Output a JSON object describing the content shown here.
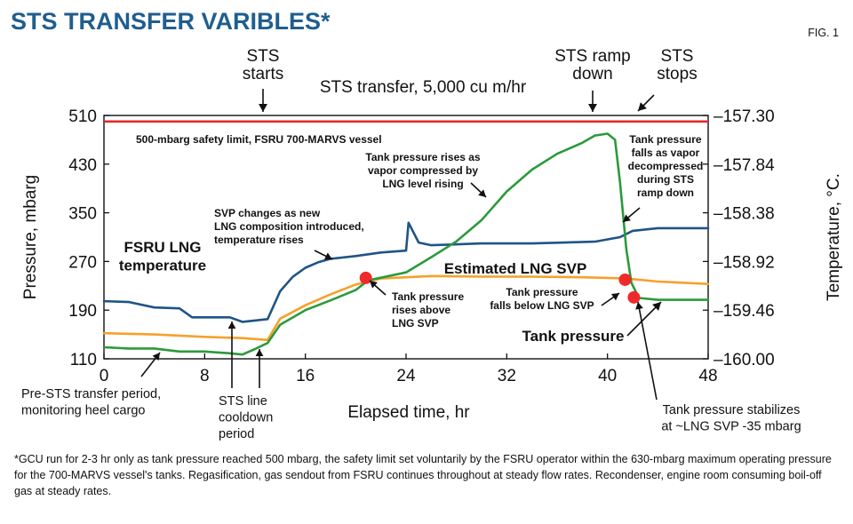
{
  "chart_data": {
    "type": "line",
    "title": "STS TRANSFER VARIBLES*",
    "figure_label": "FIG. 1",
    "xlabel": "Elapsed time, hr",
    "ylabel_left": "Pressure, mbarg",
    "ylabel_right": "Temperature, °C.",
    "xlim": [
      0,
      48
    ],
    "ylim_left": [
      110,
      510
    ],
    "ylim_right": [
      -160.0,
      -157.3
    ],
    "x_ticks": [
      "0",
      "8",
      "16",
      "24",
      "32",
      "40",
      "48"
    ],
    "y_ticks_left": [
      "110",
      "190",
      "270",
      "350",
      "430",
      "510"
    ],
    "y_ticks_right": [
      "–157.30",
      "–157.84",
      "–158.38",
      "–158.92",
      "–159.46",
      "–160.00"
    ],
    "grid": false,
    "colors": {
      "title": "#1f5e8f",
      "safety_limit": "#e8262c",
      "temperature": "#1f5486",
      "svp": "#f5a12a",
      "tank_pressure": "#2b9a3b",
      "marker": "#f02a2a"
    },
    "reference_line": {
      "y": 500,
      "label": "500-mbarg safety limit, FSRU 700-MARVS vessel"
    },
    "series": [
      {
        "name": "FSRU LNG temperature",
        "axis": "right",
        "points": [
          [
            0,
            -159.36
          ],
          [
            2,
            -159.37
          ],
          [
            4,
            -159.43
          ],
          [
            6,
            -159.44
          ],
          [
            7,
            -159.54
          ],
          [
            10,
            -159.54
          ],
          [
            11,
            -159.59
          ],
          [
            13,
            -159.56
          ],
          [
            14,
            -159.25
          ],
          [
            15,
            -159.09
          ],
          [
            16,
            -158.99
          ],
          [
            17,
            -158.93
          ],
          [
            18,
            -158.89
          ],
          [
            20,
            -158.86
          ],
          [
            22,
            -158.82
          ],
          [
            24,
            -158.8
          ],
          [
            24.2,
            -158.49
          ],
          [
            25,
            -158.71
          ],
          [
            26,
            -158.74
          ],
          [
            30,
            -158.72
          ],
          [
            34,
            -158.72
          ],
          [
            39,
            -158.7
          ],
          [
            41,
            -158.65
          ],
          [
            42,
            -158.58
          ],
          [
            44,
            -158.55
          ],
          [
            48,
            -158.55
          ]
        ]
      },
      {
        "name": "Estimated LNG SVP",
        "axis": "left",
        "points": [
          [
            0,
            152
          ],
          [
            4,
            150
          ],
          [
            8,
            146
          ],
          [
            11,
            144
          ],
          [
            13,
            141
          ],
          [
            14,
            176
          ],
          [
            16,
            198
          ],
          [
            18,
            216
          ],
          [
            20,
            232
          ],
          [
            22,
            242
          ],
          [
            26,
            246
          ],
          [
            30,
            245
          ],
          [
            34,
            245
          ],
          [
            38,
            244
          ],
          [
            40,
            243
          ],
          [
            41.5,
            242
          ],
          [
            44,
            237
          ],
          [
            48,
            233
          ]
        ]
      },
      {
        "name": "Tank pressure",
        "axis": "left",
        "points": [
          [
            0,
            129
          ],
          [
            2,
            127
          ],
          [
            4,
            127
          ],
          [
            6,
            122
          ],
          [
            8,
            122
          ],
          [
            10,
            119
          ],
          [
            11,
            117
          ],
          [
            12,
            126
          ],
          [
            13,
            136
          ],
          [
            14,
            166
          ],
          [
            16,
            190
          ],
          [
            18,
            206
          ],
          [
            20,
            223
          ],
          [
            21,
            239
          ],
          [
            24,
            252
          ],
          [
            26,
            277
          ],
          [
            28,
            303
          ],
          [
            30,
            338
          ],
          [
            32,
            385
          ],
          [
            34,
            421
          ],
          [
            36,
            447
          ],
          [
            38,
            465
          ],
          [
            39,
            477
          ],
          [
            40,
            480
          ],
          [
            40.6,
            470
          ],
          [
            41,
            400
          ],
          [
            41.5,
            290
          ],
          [
            41.9,
            235
          ],
          [
            42.5,
            210
          ],
          [
            44,
            207
          ],
          [
            48,
            207
          ]
        ]
      }
    ],
    "markers": [
      {
        "x": 20.8,
        "y": 243
      },
      {
        "x": 41.4,
        "y": 240
      },
      {
        "x": 42.1,
        "y": 211
      }
    ],
    "top_annotations": {
      "sts_starts": "STS\nstarts",
      "transfer": "STS transfer, 5,000 cu m/hr",
      "ramp_down": "STS ramp\ndown",
      "sts_stops": "STS\nstops"
    },
    "annotations": {
      "vapor_compressed": "Tank pressure rises as\nvapor compressed by\nLNG level rising",
      "svp_changes": "SVP changes as new\nLNG composition introduced,\ntemperature rises",
      "fsru_temp": "FSRU LNG\ntemperature",
      "est_svp": "Estimated LNG SVP",
      "rises_above": "Tank pressure\nrises above\nLNG SVP",
      "falls_below": "Tank pressure\nfalls below LNG SVP",
      "tank_pressure": "Tank pressure",
      "decompressed": "Tank pressure\nfalls as vapor\ndecompressed\nduring STS\nramp down",
      "pre_sts": "Pre-STS transfer period,\nmonitoring heel cargo",
      "cooldown": "STS line\ncooldown\nperiod",
      "stabilizes": "Tank pressure stabilizes\nat ~LNG SVP -35 mbarg"
    }
  },
  "footnote": "*GCU run for 2-3 hr only as tank pressure reached 500 mbarg, the safety limit set voluntarily by the FSRU operator within the 630-mbarg maximum operating pressure for the 700-MARVS vessel's tanks. Regasification, gas sendout from FSRU continues throughout at steady flow rates. Recondenser, engine room consuming boil-off gas at steady rates."
}
